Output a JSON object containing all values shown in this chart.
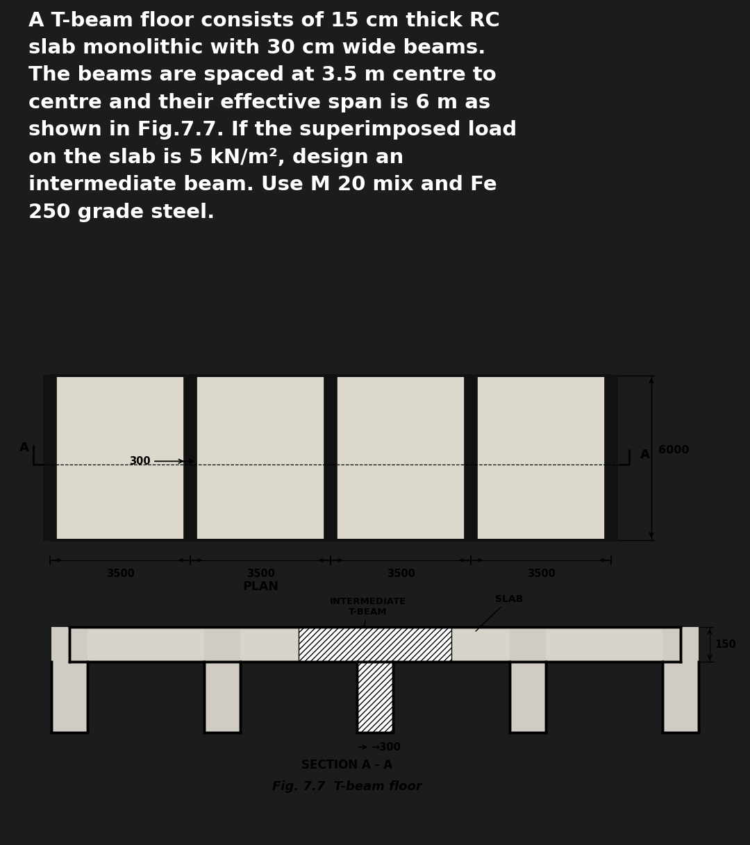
{
  "bg_top": "#1c1c1c",
  "bg_bottom": "#e8e4dc",
  "text_color_top": "#ffffff",
  "problem_text_lines": [
    "A T-beam floor consists of 15 cm thick RC",
    "slab monolithic with 30 cm wide beams.",
    "The beams are spaced at 3.5 m centre to",
    "centre and their effective span is 6 m as",
    "shown in Fig.7.7. If the superimposed load",
    "on the slab is 5 kN/m², design an",
    "intermediate beam. Use M 20 mix and Fe",
    "250 grade steel."
  ],
  "fig_caption": "Fig. 7.7  T-beam floor",
  "section_label": "SECTION A - A",
  "plan_label": "PLAN",
  "dim_6000": "6000",
  "dim_300_plan": "300",
  "dim_3500": "3500",
  "dim_150": "150",
  "dim_300_sec": "300",
  "label_intermediate": "INTERMEDIATE\nT-BEAM",
  "label_slab": "SLAB"
}
